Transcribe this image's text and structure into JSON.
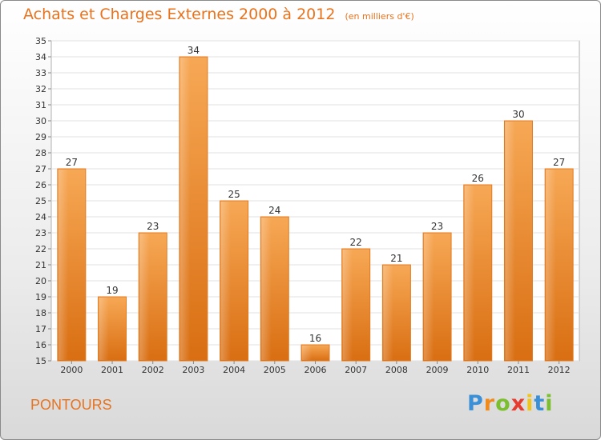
{
  "title": "Achats et Charges Externes 2000 à 2012",
  "unit": "(en milliers d'€)",
  "commune": "PONTOURS",
  "logo": {
    "letters": [
      "P",
      "r",
      "o",
      "x",
      "i",
      "t",
      "i"
    ],
    "colors": [
      "#3a8fd6",
      "#f08a1c",
      "#7cbf2e",
      "#e63b2e",
      "#f0c419",
      "#3a8fd6",
      "#7cbf2e"
    ]
  },
  "chart_data": {
    "type": "bar",
    "categories": [
      "2000",
      "2001",
      "2002",
      "2003",
      "2004",
      "2005",
      "2006",
      "2007",
      "2008",
      "2009",
      "2010",
      "2011",
      "2012"
    ],
    "values": [
      27,
      19,
      23,
      34,
      25,
      24,
      16,
      22,
      21,
      23,
      26,
      30,
      27
    ],
    "ylim": [
      15,
      35
    ],
    "yticks": [
      15,
      16,
      17,
      18,
      19,
      20,
      21,
      22,
      23,
      24,
      25,
      26,
      27,
      28,
      29,
      30,
      31,
      32,
      33,
      34,
      35
    ],
    "grid": true,
    "bar_color": "#f0892c"
  }
}
